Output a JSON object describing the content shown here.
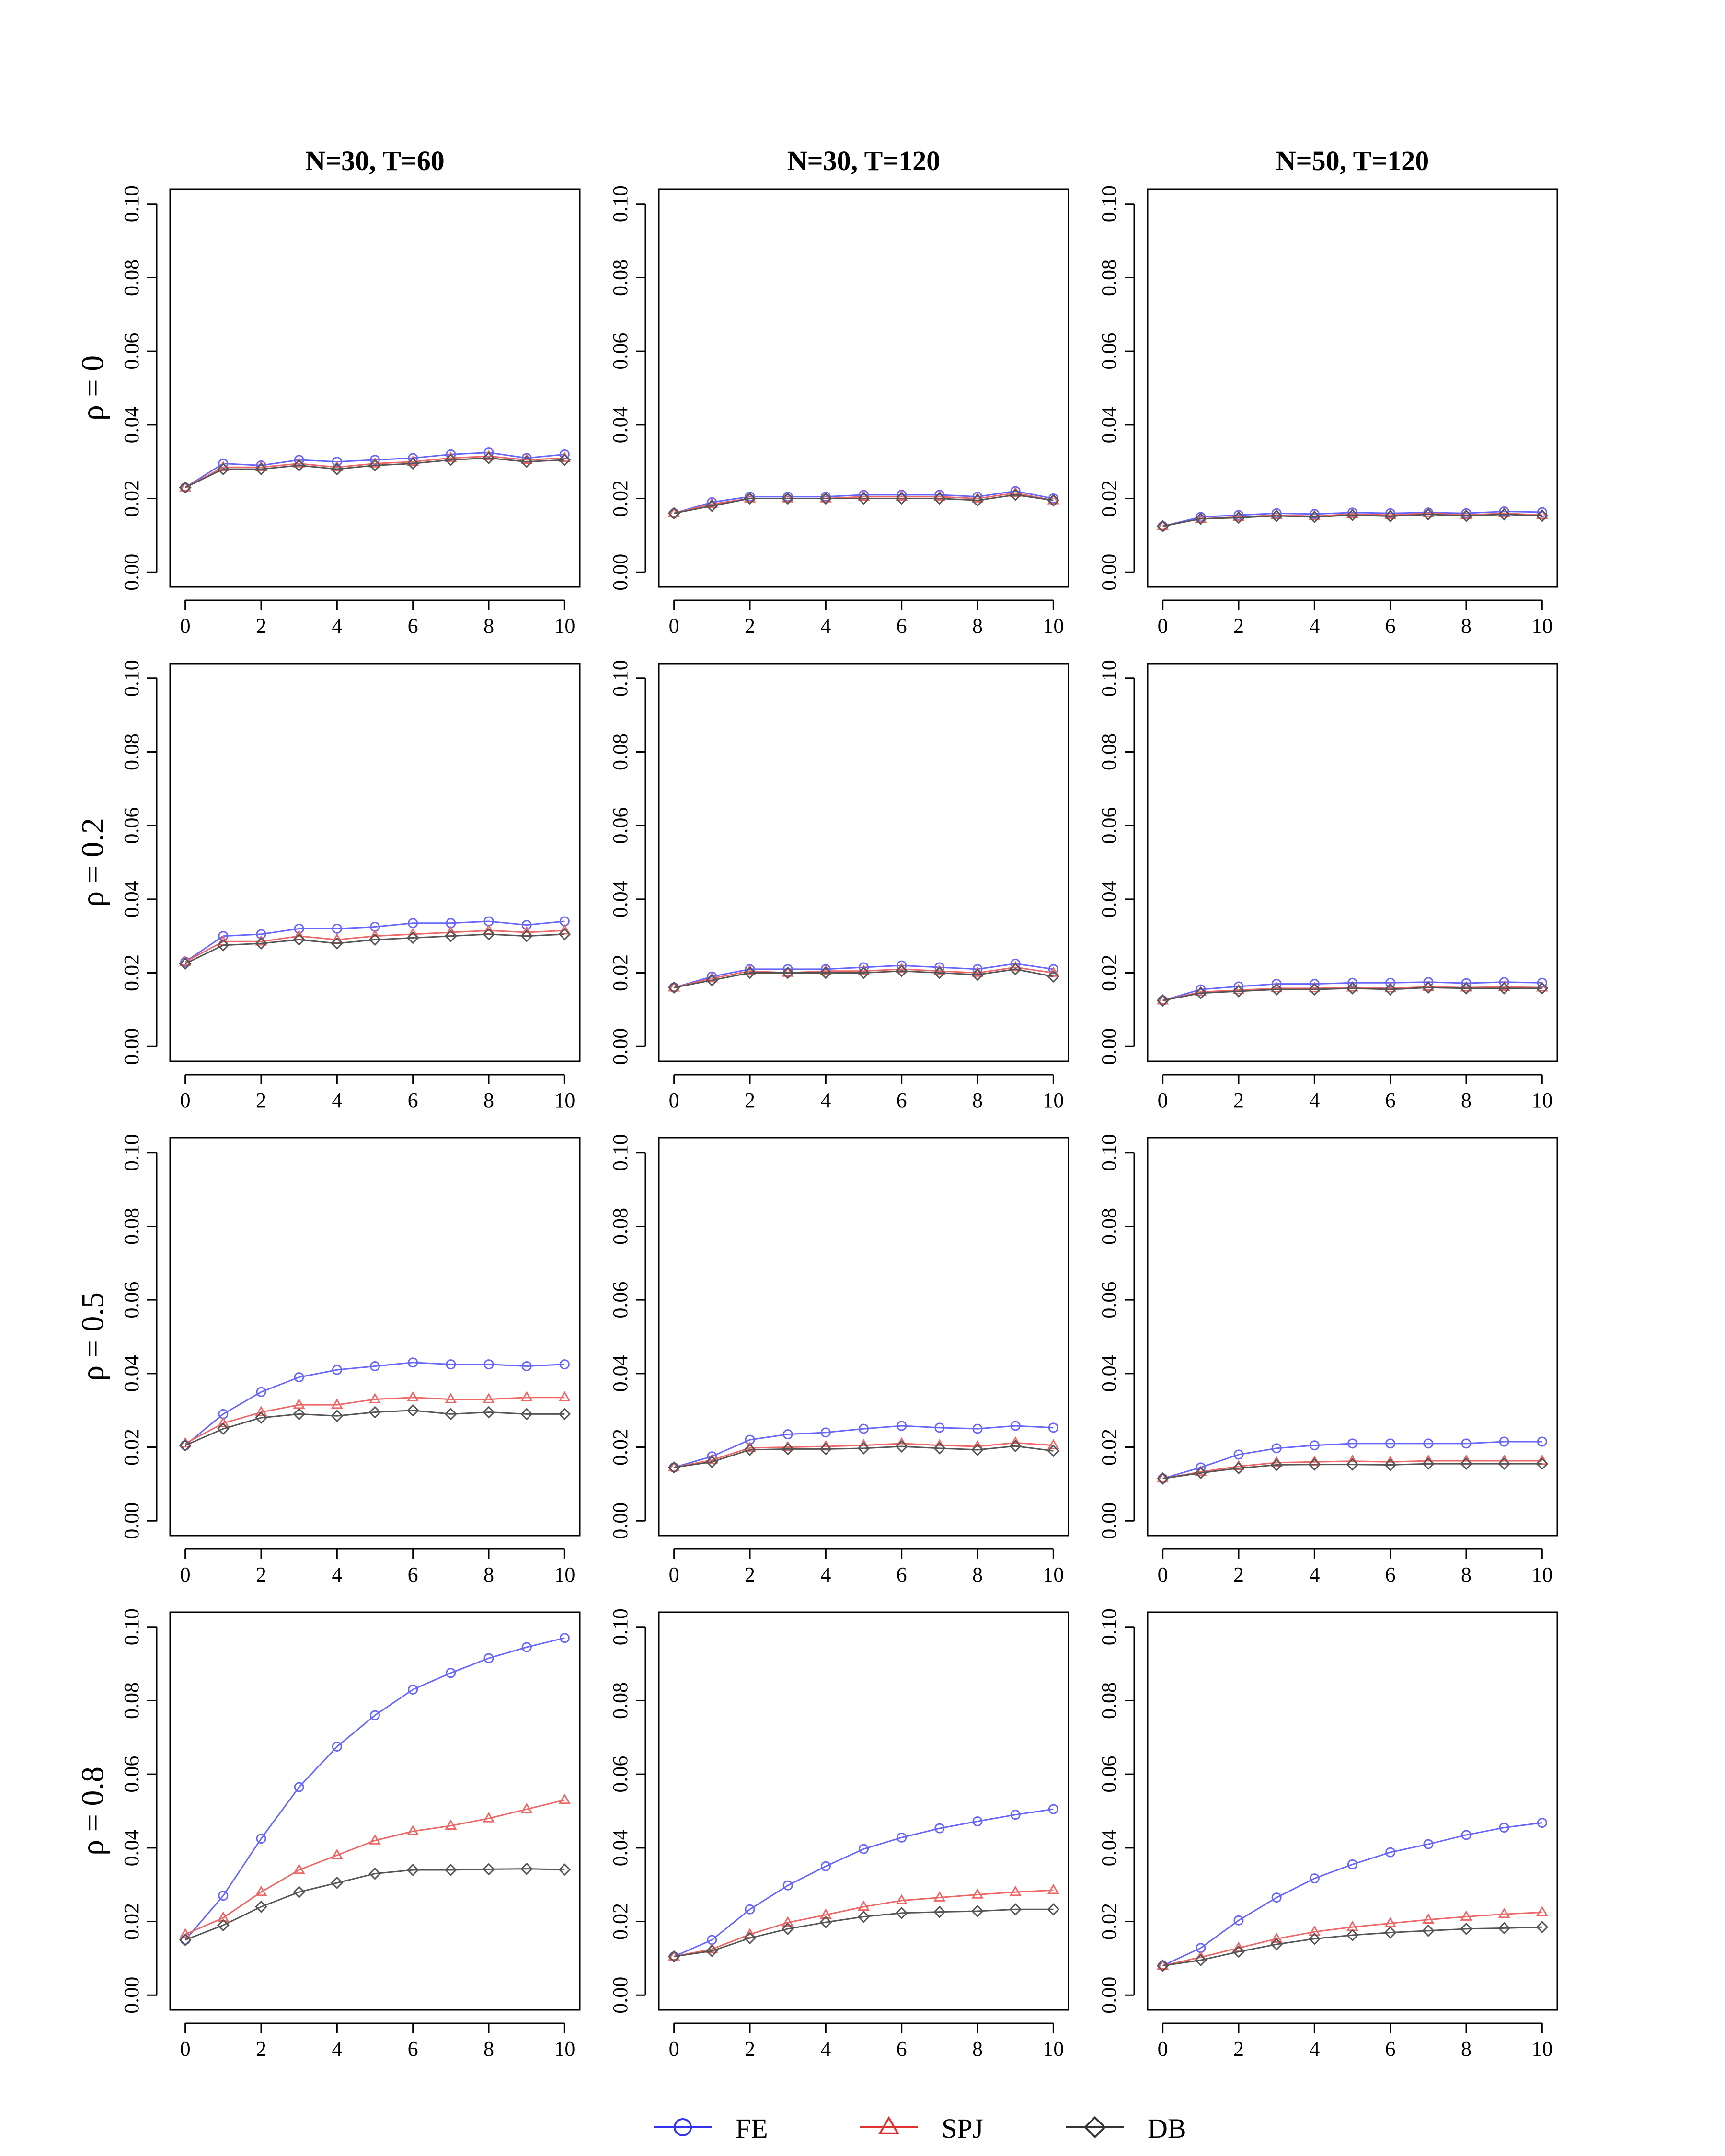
{
  "figure": {
    "columns": [
      "N=30, T=60",
      "N=30, T=120",
      "N=50, T=120"
    ],
    "rows": [
      "ρ = 0",
      "ρ = 0.2",
      "ρ = 0.5",
      "ρ = 0.8"
    ],
    "legend": [
      {
        "name": "FE",
        "color": "#3333ee",
        "marker": "circle"
      },
      {
        "name": "SPJ",
        "color": "#dd3333",
        "marker": "triangle"
      },
      {
        "name": "DB",
        "color": "#333333",
        "marker": "diamond"
      }
    ],
    "series_style": {
      "FE": {
        "color": "#6666ff",
        "marker": "circle"
      },
      "SPJ": {
        "color": "#ee6666",
        "marker": "triangle"
      },
      "DB": {
        "color": "#555555",
        "marker": "diamond"
      }
    }
  },
  "chart_data": [
    {
      "type": "line",
      "row": 0,
      "col": 0,
      "title": "N=30, T=60",
      "row_label": "ρ = 0",
      "x": [
        0,
        1,
        2,
        3,
        4,
        5,
        6,
        7,
        8,
        9,
        10
      ],
      "xlim": [
        0,
        10
      ],
      "ylim": [
        0,
        0.1
      ],
      "xticks": [
        "0",
        "2",
        "4",
        "6",
        "8",
        "10"
      ],
      "yticks": [
        "0.00",
        "0.02",
        "0.04",
        "0.06",
        "0.08",
        "0.10"
      ],
      "series": [
        {
          "name": "FE",
          "values": [
            0.023,
            0.0295,
            0.029,
            0.0305,
            0.03,
            0.0305,
            0.031,
            0.032,
            0.0325,
            0.031,
            0.032
          ]
        },
        {
          "name": "SPJ",
          "values": [
            0.023,
            0.0285,
            0.0285,
            0.0295,
            0.0285,
            0.0295,
            0.03,
            0.031,
            0.0315,
            0.0305,
            0.031
          ]
        },
        {
          "name": "DB",
          "values": [
            0.023,
            0.028,
            0.028,
            0.029,
            0.028,
            0.029,
            0.0295,
            0.0305,
            0.031,
            0.03,
            0.0305
          ]
        }
      ]
    },
    {
      "type": "line",
      "row": 0,
      "col": 1,
      "title": "N=30, T=120",
      "row_label": "ρ = 0",
      "x": [
        0,
        1,
        2,
        3,
        4,
        5,
        6,
        7,
        8,
        9,
        10
      ],
      "xlim": [
        0,
        10
      ],
      "ylim": [
        0,
        0.1
      ],
      "xticks": [
        "0",
        "2",
        "4",
        "6",
        "8",
        "10"
      ],
      "yticks": [
        "0.00",
        "0.02",
        "0.04",
        "0.06",
        "0.08",
        "0.10"
      ],
      "series": [
        {
          "name": "FE",
          "values": [
            0.016,
            0.019,
            0.0205,
            0.0205,
            0.0205,
            0.021,
            0.021,
            0.021,
            0.0205,
            0.022,
            0.02
          ]
        },
        {
          "name": "SPJ",
          "values": [
            0.016,
            0.0185,
            0.02,
            0.02,
            0.02,
            0.0205,
            0.0205,
            0.0205,
            0.02,
            0.0215,
            0.0195
          ]
        },
        {
          "name": "DB",
          "values": [
            0.016,
            0.018,
            0.02,
            0.02,
            0.02,
            0.02,
            0.02,
            0.02,
            0.0195,
            0.021,
            0.0195
          ]
        }
      ]
    },
    {
      "type": "line",
      "row": 0,
      "col": 2,
      "title": "N=50, T=120",
      "row_label": "ρ = 0",
      "x": [
        0,
        1,
        2,
        3,
        4,
        5,
        6,
        7,
        8,
        9,
        10
      ],
      "xlim": [
        0,
        10
      ],
      "ylim": [
        0,
        0.1
      ],
      "xticks": [
        "0",
        "2",
        "4",
        "6",
        "8",
        "10"
      ],
      "yticks": [
        "0.00",
        "0.02",
        "0.04",
        "0.06",
        "0.08",
        "0.10"
      ],
      "series": [
        {
          "name": "FE",
          "values": [
            0.0125,
            0.015,
            0.0155,
            0.016,
            0.0158,
            0.0162,
            0.016,
            0.0162,
            0.016,
            0.0165,
            0.0163
          ]
        },
        {
          "name": "SPJ",
          "values": [
            0.0125,
            0.0145,
            0.015,
            0.0155,
            0.0152,
            0.0158,
            0.0155,
            0.016,
            0.0155,
            0.016,
            0.0155
          ]
        },
        {
          "name": "DB",
          "values": [
            0.0125,
            0.0145,
            0.0148,
            0.0153,
            0.015,
            0.0155,
            0.0152,
            0.0157,
            0.0153,
            0.0157,
            0.0153
          ]
        }
      ]
    },
    {
      "type": "line",
      "row": 1,
      "col": 0,
      "title": "N=30, T=60",
      "row_label": "ρ = 0.2",
      "x": [
        0,
        1,
        2,
        3,
        4,
        5,
        6,
        7,
        8,
        9,
        10
      ],
      "xlim": [
        0,
        10
      ],
      "ylim": [
        0,
        0.1
      ],
      "xticks": [
        "0",
        "2",
        "4",
        "6",
        "8",
        "10"
      ],
      "yticks": [
        "0.00",
        "0.02",
        "0.04",
        "0.06",
        "0.08",
        "0.10"
      ],
      "series": [
        {
          "name": "FE",
          "values": [
            0.023,
            0.03,
            0.0305,
            0.032,
            0.032,
            0.0325,
            0.0335,
            0.0335,
            0.034,
            0.033,
            0.034
          ]
        },
        {
          "name": "SPJ",
          "values": [
            0.023,
            0.0285,
            0.0285,
            0.03,
            0.029,
            0.03,
            0.0305,
            0.031,
            0.0315,
            0.031,
            0.0315
          ]
        },
        {
          "name": "DB",
          "values": [
            0.0225,
            0.0275,
            0.028,
            0.029,
            0.028,
            0.029,
            0.0295,
            0.03,
            0.0305,
            0.03,
            0.0305
          ]
        }
      ]
    },
    {
      "type": "line",
      "row": 1,
      "col": 1,
      "title": "N=30, T=120",
      "row_label": "ρ = 0.2",
      "x": [
        0,
        1,
        2,
        3,
        4,
        5,
        6,
        7,
        8,
        9,
        10
      ],
      "xlim": [
        0,
        10
      ],
      "ylim": [
        0,
        0.1
      ],
      "xticks": [
        "0",
        "2",
        "4",
        "6",
        "8",
        "10"
      ],
      "yticks": [
        "0.00",
        "0.02",
        "0.04",
        "0.06",
        "0.08",
        "0.10"
      ],
      "series": [
        {
          "name": "FE",
          "values": [
            0.016,
            0.019,
            0.021,
            0.021,
            0.021,
            0.0215,
            0.022,
            0.0215,
            0.021,
            0.0225,
            0.021
          ]
        },
        {
          "name": "SPJ",
          "values": [
            0.016,
            0.0185,
            0.0205,
            0.02,
            0.0205,
            0.0205,
            0.021,
            0.0205,
            0.02,
            0.0215,
            0.02
          ]
        },
        {
          "name": "DB",
          "values": [
            0.016,
            0.018,
            0.02,
            0.02,
            0.02,
            0.02,
            0.0205,
            0.02,
            0.0195,
            0.021,
            0.019
          ]
        }
      ]
    },
    {
      "type": "line",
      "row": 1,
      "col": 2,
      "title": "N=50, T=120",
      "row_label": "ρ = 0.2",
      "x": [
        0,
        1,
        2,
        3,
        4,
        5,
        6,
        7,
        8,
        9,
        10
      ],
      "xlim": [
        0,
        10
      ],
      "ylim": [
        0,
        0.1
      ],
      "xticks": [
        "0",
        "2",
        "4",
        "6",
        "8",
        "10"
      ],
      "yticks": [
        "0.00",
        "0.02",
        "0.04",
        "0.06",
        "0.08",
        "0.10"
      ],
      "series": [
        {
          "name": "FE",
          "values": [
            0.0125,
            0.0155,
            0.0163,
            0.017,
            0.017,
            0.0173,
            0.0173,
            0.0175,
            0.0172,
            0.0175,
            0.0173
          ]
        },
        {
          "name": "SPJ",
          "values": [
            0.0125,
            0.0148,
            0.0153,
            0.0158,
            0.0158,
            0.016,
            0.0158,
            0.0162,
            0.016,
            0.0162,
            0.016
          ]
        },
        {
          "name": "DB",
          "values": [
            0.0125,
            0.0145,
            0.015,
            0.0155,
            0.0155,
            0.0158,
            0.0155,
            0.016,
            0.0158,
            0.0158,
            0.0158
          ]
        }
      ]
    },
    {
      "type": "line",
      "row": 2,
      "col": 0,
      "title": "N=30, T=60",
      "row_label": "ρ = 0.5",
      "x": [
        0,
        1,
        2,
        3,
        4,
        5,
        6,
        7,
        8,
        9,
        10
      ],
      "xlim": [
        0,
        10
      ],
      "ylim": [
        0,
        0.1
      ],
      "xticks": [
        "0",
        "2",
        "4",
        "6",
        "8",
        "10"
      ],
      "yticks": [
        "0.00",
        "0.02",
        "0.04",
        "0.06",
        "0.08",
        "0.10"
      ],
      "series": [
        {
          "name": "FE",
          "values": [
            0.0205,
            0.029,
            0.035,
            0.039,
            0.041,
            0.042,
            0.043,
            0.0425,
            0.0425,
            0.042,
            0.0425
          ]
        },
        {
          "name": "SPJ",
          "values": [
            0.021,
            0.0265,
            0.0295,
            0.0315,
            0.0315,
            0.033,
            0.0335,
            0.033,
            0.033,
            0.0335,
            0.0335
          ]
        },
        {
          "name": "DB",
          "values": [
            0.0205,
            0.025,
            0.028,
            0.029,
            0.0285,
            0.0295,
            0.03,
            0.029,
            0.0295,
            0.029,
            0.029
          ]
        }
      ]
    },
    {
      "type": "line",
      "row": 2,
      "col": 1,
      "title": "N=30, T=120",
      "row_label": "ρ = 0.5",
      "x": [
        0,
        1,
        2,
        3,
        4,
        5,
        6,
        7,
        8,
        9,
        10
      ],
      "xlim": [
        0,
        10
      ],
      "ylim": [
        0,
        0.1
      ],
      "xticks": [
        "0",
        "2",
        "4",
        "6",
        "8",
        "10"
      ],
      "yticks": [
        "0.00",
        "0.02",
        "0.04",
        "0.06",
        "0.08",
        "0.10"
      ],
      "series": [
        {
          "name": "FE",
          "values": [
            0.0145,
            0.0175,
            0.022,
            0.0235,
            0.024,
            0.025,
            0.0258,
            0.0253,
            0.025,
            0.0258,
            0.0253
          ]
        },
        {
          "name": "SPJ",
          "values": [
            0.0145,
            0.0165,
            0.0198,
            0.02,
            0.0202,
            0.0205,
            0.021,
            0.0205,
            0.0202,
            0.0212,
            0.0205
          ]
        },
        {
          "name": "DB",
          "values": [
            0.0145,
            0.016,
            0.0193,
            0.0195,
            0.0195,
            0.0197,
            0.0202,
            0.0197,
            0.0193,
            0.0203,
            0.019
          ]
        }
      ]
    },
    {
      "type": "line",
      "row": 2,
      "col": 2,
      "title": "N=50, T=120",
      "row_label": "ρ = 0.5",
      "x": [
        0,
        1,
        2,
        3,
        4,
        5,
        6,
        7,
        8,
        9,
        10
      ],
      "xlim": [
        0,
        10
      ],
      "ylim": [
        0,
        0.1
      ],
      "xticks": [
        "0",
        "2",
        "4",
        "6",
        "8",
        "10"
      ],
      "yticks": [
        "0.00",
        "0.02",
        "0.04",
        "0.06",
        "0.08",
        "0.10"
      ],
      "series": [
        {
          "name": "FE",
          "values": [
            0.0115,
            0.0145,
            0.018,
            0.0197,
            0.0205,
            0.021,
            0.021,
            0.021,
            0.021,
            0.0215,
            0.0215
          ]
        },
        {
          "name": "SPJ",
          "values": [
            0.0115,
            0.0133,
            0.0148,
            0.0158,
            0.016,
            0.0162,
            0.016,
            0.0163,
            0.0163,
            0.0163,
            0.0163
          ]
        },
        {
          "name": "DB",
          "values": [
            0.0115,
            0.013,
            0.0143,
            0.0152,
            0.0153,
            0.0153,
            0.0152,
            0.0155,
            0.0155,
            0.0155,
            0.0155
          ]
        }
      ]
    },
    {
      "type": "line",
      "row": 3,
      "col": 0,
      "title": "N=30, T=60",
      "row_label": "ρ = 0.8",
      "x": [
        0,
        1,
        2,
        3,
        4,
        5,
        6,
        7,
        8,
        9,
        10
      ],
      "xlim": [
        0,
        10
      ],
      "ylim": [
        0,
        0.1
      ],
      "xticks": [
        "0",
        "2",
        "4",
        "6",
        "8",
        "10"
      ],
      "yticks": [
        "0.00",
        "0.02",
        "0.04",
        "0.06",
        "0.08",
        "0.10"
      ],
      "series": [
        {
          "name": "FE",
          "values": [
            0.015,
            0.027,
            0.0425,
            0.0565,
            0.0675,
            0.076,
            0.083,
            0.0875,
            0.0915,
            0.0945,
            0.097
          ]
        },
        {
          "name": "SPJ",
          "values": [
            0.0165,
            0.021,
            0.028,
            0.034,
            0.038,
            0.042,
            0.0445,
            0.046,
            0.048,
            0.0505,
            0.053
          ]
        },
        {
          "name": "DB",
          "values": [
            0.015,
            0.019,
            0.024,
            0.028,
            0.0305,
            0.033,
            0.034,
            0.034,
            0.0342,
            0.0343,
            0.0341
          ]
        }
      ]
    },
    {
      "type": "line",
      "row": 3,
      "col": 1,
      "title": "N=30, T=120",
      "row_label": "ρ = 0.8",
      "x": [
        0,
        1,
        2,
        3,
        4,
        5,
        6,
        7,
        8,
        9,
        10
      ],
      "xlim": [
        0,
        10
      ],
      "ylim": [
        0,
        0.1
      ],
      "xticks": [
        "0",
        "2",
        "4",
        "6",
        "8",
        "10"
      ],
      "yticks": [
        "0.00",
        "0.02",
        "0.04",
        "0.06",
        "0.08",
        "0.10"
      ],
      "series": [
        {
          "name": "FE",
          "values": [
            0.0105,
            0.015,
            0.0233,
            0.0298,
            0.035,
            0.0397,
            0.0428,
            0.0453,
            0.0472,
            0.049,
            0.0505
          ]
        },
        {
          "name": "SPJ",
          "values": [
            0.0105,
            0.0125,
            0.0165,
            0.0197,
            0.0218,
            0.024,
            0.0257,
            0.0265,
            0.0273,
            0.028,
            0.0285
          ]
        },
        {
          "name": "DB",
          "values": [
            0.0105,
            0.012,
            0.0155,
            0.018,
            0.0198,
            0.0213,
            0.0223,
            0.0226,
            0.0228,
            0.0233,
            0.0233
          ]
        }
      ]
    },
    {
      "type": "line",
      "row": 3,
      "col": 2,
      "title": "N=50, T=120",
      "row_label": "ρ = 0.8",
      "x": [
        0,
        1,
        2,
        3,
        4,
        5,
        6,
        7,
        8,
        9,
        10
      ],
      "xlim": [
        0,
        10
      ],
      "ylim": [
        0,
        0.1
      ],
      "xticks": [
        "0",
        "2",
        "4",
        "6",
        "8",
        "10"
      ],
      "yticks": [
        "0.00",
        "0.02",
        "0.04",
        "0.06",
        "0.08",
        "0.10"
      ],
      "series": [
        {
          "name": "FE",
          "values": [
            0.008,
            0.0128,
            0.0203,
            0.0265,
            0.0317,
            0.0355,
            0.0388,
            0.041,
            0.0435,
            0.0455,
            0.0468
          ]
        },
        {
          "name": "SPJ",
          "values": [
            0.008,
            0.0103,
            0.0128,
            0.0153,
            0.0172,
            0.0185,
            0.0195,
            0.0205,
            0.0213,
            0.022,
            0.0225
          ]
        },
        {
          "name": "DB",
          "values": [
            0.008,
            0.0095,
            0.0118,
            0.0138,
            0.0153,
            0.0163,
            0.017,
            0.0175,
            0.018,
            0.0182,
            0.0185
          ]
        }
      ]
    }
  ]
}
